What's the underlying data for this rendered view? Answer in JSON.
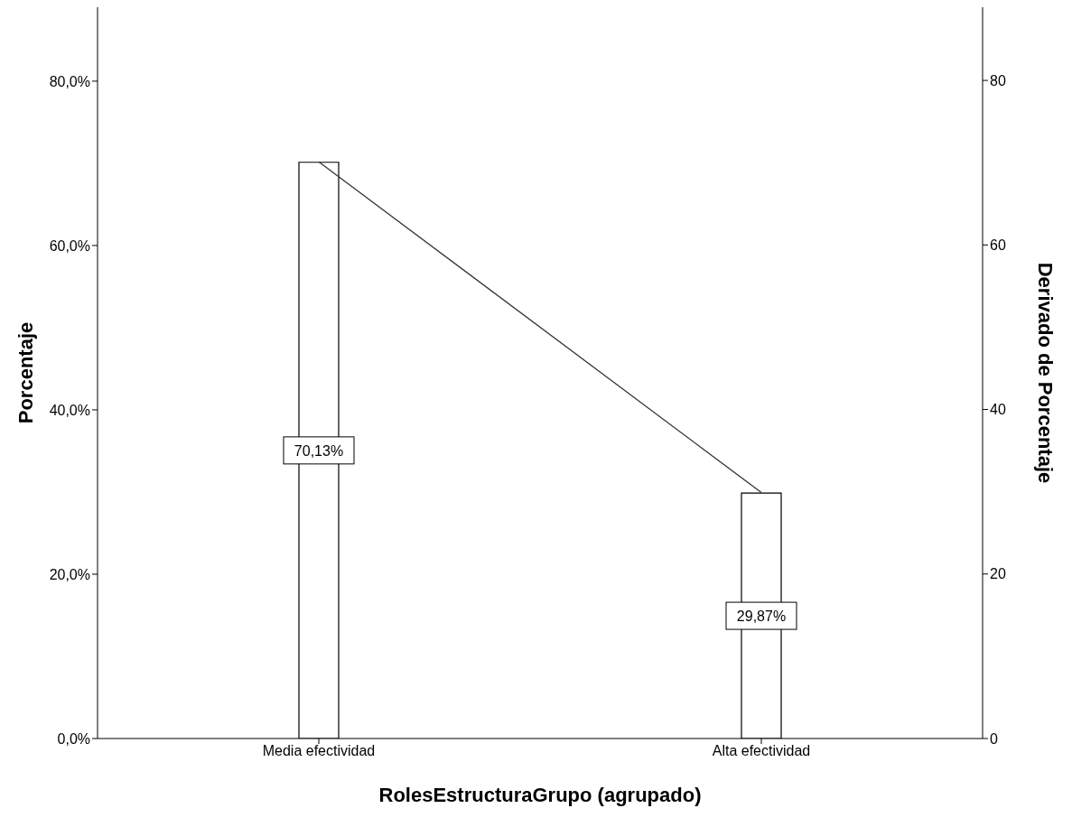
{
  "chart_data": {
    "type": "bar",
    "xlabel": "RolesEstructuraGrupo (agrupado)",
    "ylabel": "Porcentaje",
    "y2label": "Derivado de Porcentaje",
    "categories": [
      "Media efectividad",
      "Alta efectividad"
    ],
    "series": [
      {
        "color": "#ffffff",
        "values": [
          70.13,
          29.87
        ],
        "value_labels": [
          "70,13%",
          "29,87%"
        ]
      },
      {
        "type": "line",
        "axis": "y2",
        "color": "#333333",
        "values": [
          70.1,
          29.9
        ]
      }
    ],
    "ylim": [
      0,
      89
    ],
    "yticks": [
      {
        "value": 0,
        "label": "0,0%"
      },
      {
        "value": 20,
        "label": "20,0%"
      },
      {
        "value": 40,
        "label": "40,0%"
      },
      {
        "value": 60,
        "label": "60,0%"
      },
      {
        "value": 80,
        "label": "80,0%"
      }
    ],
    "y2lim": [
      0,
      88.9
    ],
    "y2ticks": [
      0,
      20,
      40,
      60,
      80
    ]
  }
}
